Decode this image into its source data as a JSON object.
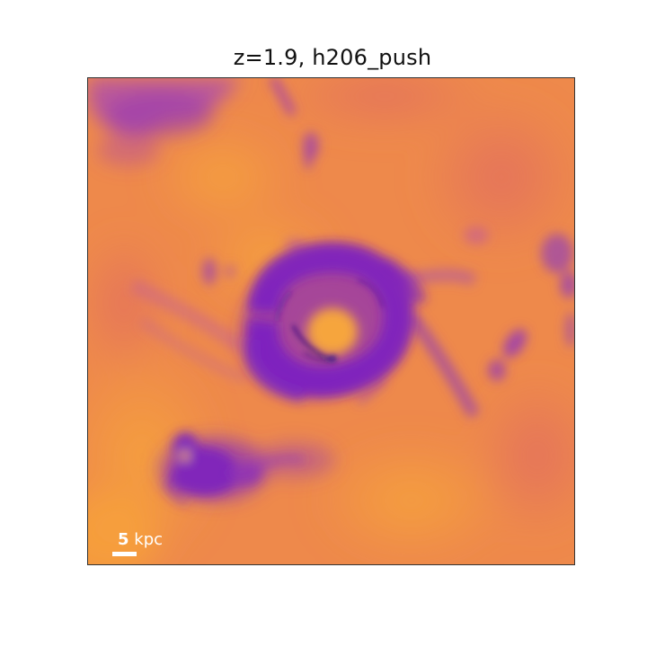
{
  "figure": {
    "title": "z=1.9, h206_push"
  },
  "scale_bar": {
    "value": "5",
    "unit": "kpc"
  },
  "colors": {
    "background_map": "#ef8a4a",
    "hot_region": "#f7a13c",
    "dense_gas": "#7a1fc0",
    "dense_gas_dark": "#2a0f7a",
    "intermediate": "#c25aa0"
  }
}
